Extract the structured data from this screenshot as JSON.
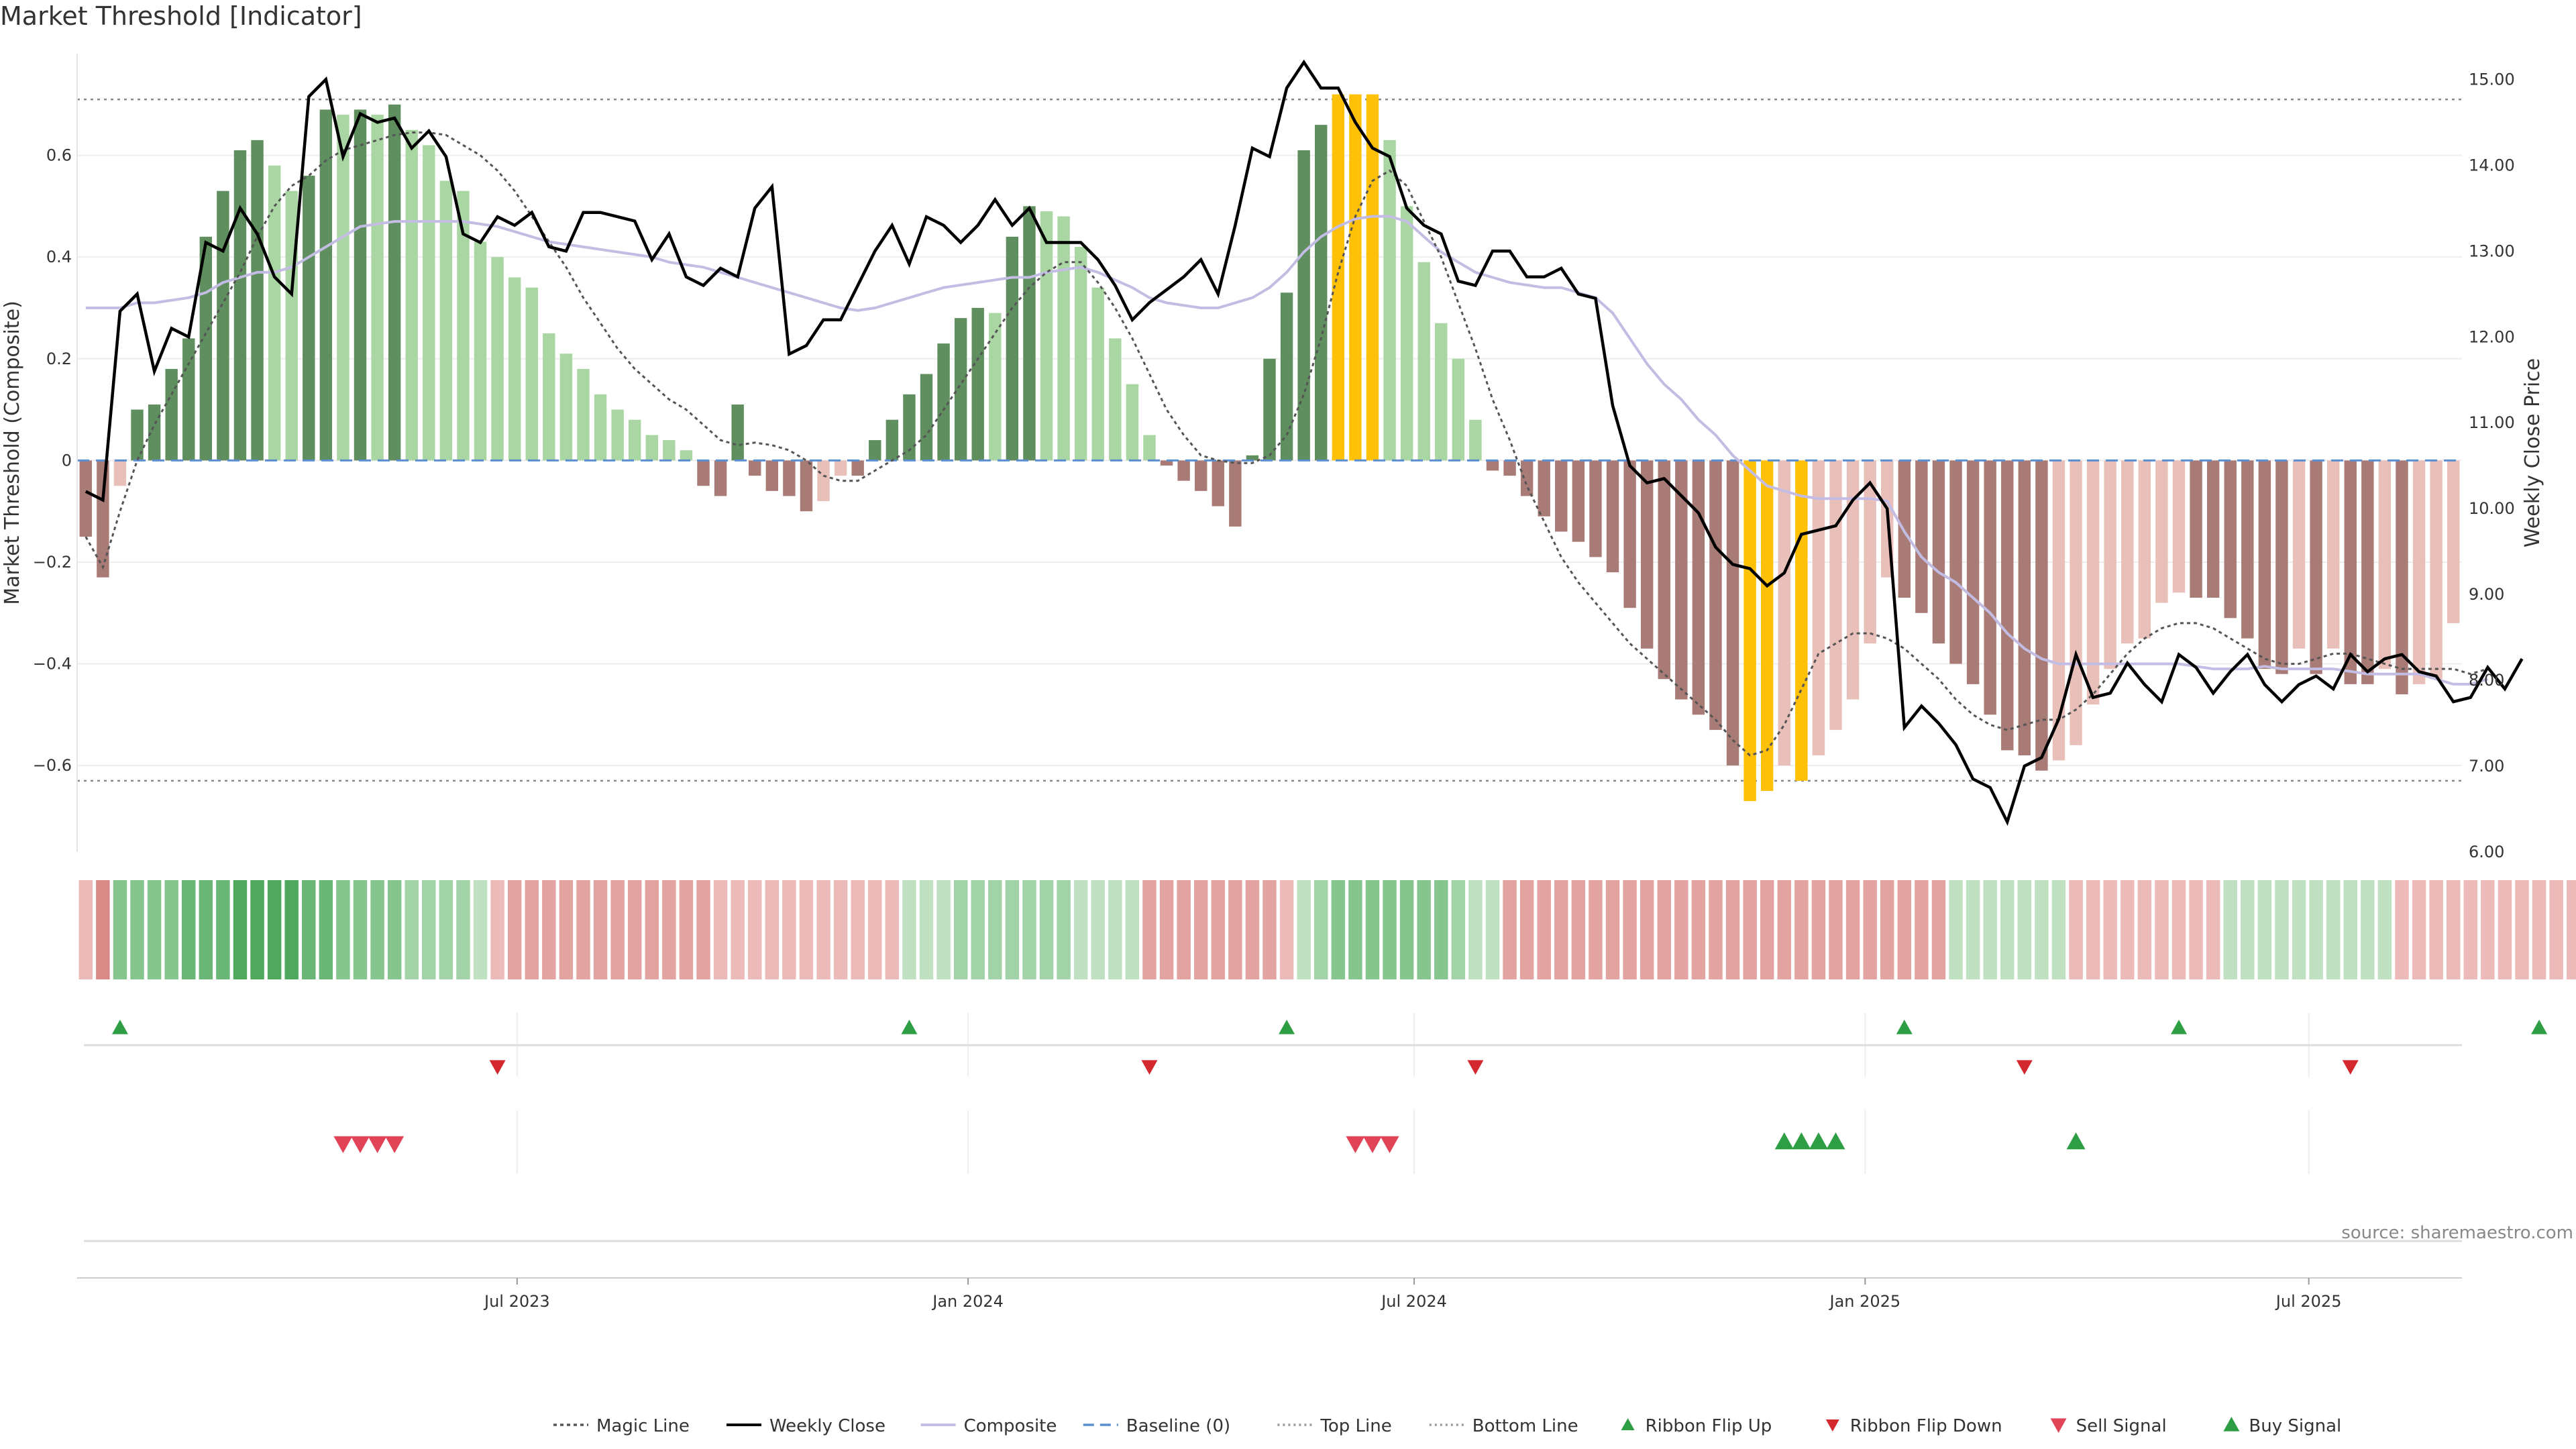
{
  "page": {
    "title": "Market Threshold [Indicator]"
  },
  "colors": {
    "bar_green_dark": "#5f8e5f",
    "bar_green_light": "#a9d6a2",
    "bar_red_dark": "#a87b76",
    "bar_red_light": "#e9bfba",
    "bar_extreme": "#ffc107",
    "weekly_close": "#000000",
    "composite": "#c3bce3",
    "magic": "#555555",
    "baseline": "#5b8fd0",
    "threshold": "#888888",
    "ribbon_up": "#2e9e44",
    "ribbon_down": "#d3282d",
    "sell": "#e04456",
    "buy": "#2e9e44"
  },
  "chart_data": {
    "type": "bar",
    "title": "Market Threshold [Indicator]",
    "ylabel": "Market Threshold (Composite)",
    "ylabel_right": "Weekly Close Price",
    "ylim": [
      -0.77,
      0.8
    ],
    "ylim_right": [
      6.0,
      15.3
    ],
    "yticks": [
      -0.6,
      -0.4,
      -0.2,
      0,
      0.2,
      0.4,
      0.6
    ],
    "ytick_labels": [
      "−0.6",
      "−0.4",
      "−0.2",
      "0",
      "0.2",
      "0.4",
      "0.6"
    ],
    "yticks_right": [
      6,
      7,
      8,
      9,
      10,
      11,
      12,
      13,
      14,
      15
    ],
    "ytick_labels_right": [
      "6.00",
      "7.00",
      "8.00",
      "9.00",
      "10.00",
      "11.00",
      "12.00",
      "13.00",
      "14.00",
      "15.00"
    ],
    "top_line": 0.71,
    "bottom_line": -0.63,
    "x_start": "2023-01-06",
    "x_step_days": 7,
    "x_ticks": [
      "2023-07-01",
      "2024-01-01",
      "2024-07-01",
      "2025-01-01",
      "2025-07-01"
    ],
    "x_tick_labels": [
      "Jul 2023",
      "Jan 2024",
      "Jul 2024",
      "Jan 2025",
      "Jul 2025"
    ],
    "grid": true,
    "legend_position": "bottom",
    "source": "source: sharemaestro.com",
    "series": [
      {
        "name": "Composite",
        "kind": "bar",
        "values": [
          -0.15,
          -0.23,
          -0.05,
          0.1,
          0.11,
          0.18,
          0.24,
          0.44,
          0.53,
          0.61,
          0.63,
          0.58,
          0.53,
          0.56,
          0.69,
          0.68,
          0.69,
          0.68,
          0.7,
          0.65,
          0.62,
          0.55,
          0.53,
          0.43,
          0.4,
          0.36,
          0.34,
          0.25,
          0.21,
          0.18,
          0.13,
          0.1,
          0.08,
          0.05,
          0.04,
          0.02,
          -0.05,
          -0.07,
          0.11,
          -0.03,
          -0.06,
          -0.07,
          -0.1,
          -0.08,
          -0.03,
          -0.03,
          0.04,
          0.08,
          0.13,
          0.17,
          0.23,
          0.28,
          0.3,
          0.29,
          0.44,
          0.5,
          0.49,
          0.48,
          0.42,
          0.34,
          0.24,
          0.15,
          0.05,
          -0.01,
          -0.04,
          -0.06,
          -0.09,
          -0.13,
          0.01,
          0.2,
          0.33,
          0.61,
          0.66,
          0.72,
          0.72,
          0.72,
          0.63,
          0.5,
          0.39,
          0.27,
          0.2,
          0.08,
          -0.02,
          -0.03,
          -0.07,
          -0.11,
          -0.14,
          -0.16,
          -0.19,
          -0.22,
          -0.29,
          -0.37,
          -0.43,
          -0.47,
          -0.5,
          -0.53,
          -0.6,
          -0.67,
          -0.65,
          -0.6,
          -0.63,
          -0.58,
          -0.53,
          -0.47,
          -0.36,
          -0.23,
          -0.27,
          -0.3,
          -0.36,
          -0.4,
          -0.44,
          -0.5,
          -0.57,
          -0.58,
          -0.61,
          -0.59,
          -0.56,
          -0.48,
          -0.41,
          -0.36,
          -0.35,
          -0.28,
          -0.26,
          -0.27,
          -0.27,
          -0.31,
          -0.35,
          -0.41,
          -0.42,
          -0.37,
          -0.42,
          -0.37,
          -0.44,
          -0.44,
          -0.41,
          -0.46,
          -0.44,
          -0.43,
          -0.32
        ]
      },
      {
        "name": "Weekly Close",
        "kind": "line",
        "axis": "right",
        "values": [
          10.2,
          10.1,
          12.3,
          12.5,
          11.6,
          12.1,
          12.0,
          13.1,
          13.0,
          13.5,
          13.2,
          12.7,
          12.5,
          14.8,
          15.0,
          14.1,
          14.6,
          14.5,
          14.55,
          14.2,
          14.4,
          14.1,
          13.2,
          13.1,
          13.4,
          13.3,
          13.45,
          13.05,
          13.0,
          13.45,
          13.45,
          13.4,
          13.35,
          12.9,
          13.2,
          12.7,
          12.6,
          12.8,
          12.7,
          13.5,
          13.75,
          11.8,
          11.9,
          12.2,
          12.2,
          12.6,
          13.0,
          13.3,
          12.85,
          13.4,
          13.3,
          13.1,
          13.3,
          13.6,
          13.3,
          13.5,
          13.1,
          13.1,
          13.1,
          12.9,
          12.6,
          12.2,
          12.4,
          12.55,
          12.7,
          12.9,
          12.5,
          13.3,
          14.2,
          14.1,
          14.9,
          15.2,
          14.9,
          14.9,
          14.5,
          14.2,
          14.1,
          13.5,
          13.3,
          13.2,
          12.65,
          12.6,
          13.0,
          13.0,
          12.7,
          12.7,
          12.8,
          12.5,
          12.45,
          11.2,
          10.5,
          10.3,
          10.35,
          10.15,
          9.95,
          9.55,
          9.35,
          9.3,
          9.1,
          9.25,
          9.7,
          9.75,
          9.8,
          10.1,
          10.3,
          10.0,
          7.45,
          7.7,
          7.5,
          7.25,
          6.85,
          6.75,
          6.35,
          7.0,
          7.1,
          7.55,
          8.3,
          7.8,
          7.85,
          8.2,
          7.95,
          7.75,
          8.3,
          8.15,
          7.85,
          8.1,
          8.3,
          7.95,
          7.75,
          7.95,
          8.05,
          7.9,
          8.3,
          8.1,
          8.25,
          8.3,
          8.1,
          8.05,
          7.75,
          7.8,
          8.15,
          7.9,
          8.25
        ]
      },
      {
        "name": "Composite",
        "kind": "smooth-line",
        "values": [
          0.3,
          0.3,
          0.3,
          0.31,
          0.31,
          0.315,
          0.32,
          0.33,
          0.35,
          0.36,
          0.37,
          0.37,
          0.38,
          0.4,
          0.42,
          0.44,
          0.46,
          0.465,
          0.47,
          0.47,
          0.47,
          0.47,
          0.47,
          0.465,
          0.46,
          0.45,
          0.44,
          0.43,
          0.425,
          0.42,
          0.415,
          0.41,
          0.405,
          0.4,
          0.39,
          0.385,
          0.38,
          0.37,
          0.36,
          0.35,
          0.34,
          0.33,
          0.32,
          0.31,
          0.3,
          0.295,
          0.3,
          0.31,
          0.32,
          0.33,
          0.34,
          0.345,
          0.35,
          0.355,
          0.36,
          0.36,
          0.37,
          0.375,
          0.38,
          0.37,
          0.355,
          0.34,
          0.32,
          0.31,
          0.305,
          0.3,
          0.3,
          0.31,
          0.32,
          0.34,
          0.37,
          0.41,
          0.44,
          0.46,
          0.475,
          0.48,
          0.48,
          0.47,
          0.44,
          0.41,
          0.39,
          0.37,
          0.36,
          0.35,
          0.345,
          0.34,
          0.34,
          0.33,
          0.32,
          0.29,
          0.24,
          0.19,
          0.15,
          0.12,
          0.08,
          0.05,
          0.01,
          -0.02,
          -0.05,
          -0.06,
          -0.07,
          -0.075,
          -0.075,
          -0.075,
          -0.075,
          -0.08,
          -0.14,
          -0.19,
          -0.22,
          -0.24,
          -0.27,
          -0.3,
          -0.34,
          -0.37,
          -0.39,
          -0.4,
          -0.4,
          -0.4,
          -0.4,
          -0.4,
          -0.4,
          -0.4,
          -0.4,
          -0.405,
          -0.41,
          -0.41,
          -0.41,
          -0.405,
          -0.41,
          -0.41,
          -0.41,
          -0.41,
          -0.415,
          -0.42,
          -0.42,
          -0.42,
          -0.42,
          -0.43,
          -0.44,
          -0.44,
          -0.43
        ]
      },
      {
        "name": "Magic Line",
        "kind": "dashed-line",
        "values": [
          -0.15,
          -0.21,
          -0.1,
          0.0,
          0.07,
          0.13,
          0.19,
          0.25,
          0.31,
          0.37,
          0.44,
          0.5,
          0.54,
          0.56,
          0.59,
          0.61,
          0.62,
          0.63,
          0.64,
          0.645,
          0.645,
          0.64,
          0.62,
          0.6,
          0.57,
          0.53,
          0.48,
          0.43,
          0.38,
          0.32,
          0.27,
          0.22,
          0.18,
          0.15,
          0.12,
          0.1,
          0.07,
          0.04,
          0.03,
          0.035,
          0.03,
          0.02,
          0.0,
          -0.03,
          -0.04,
          -0.04,
          -0.02,
          0.0,
          0.02,
          0.05,
          0.1,
          0.15,
          0.2,
          0.25,
          0.3,
          0.34,
          0.37,
          0.39,
          0.39,
          0.35,
          0.3,
          0.24,
          0.17,
          0.1,
          0.05,
          0.01,
          0.0,
          -0.005,
          -0.005,
          0.01,
          0.05,
          0.13,
          0.24,
          0.37,
          0.48,
          0.55,
          0.57,
          0.54,
          0.47,
          0.4,
          0.31,
          0.22,
          0.12,
          0.04,
          -0.05,
          -0.12,
          -0.19,
          -0.24,
          -0.28,
          -0.32,
          -0.36,
          -0.39,
          -0.42,
          -0.45,
          -0.48,
          -0.51,
          -0.55,
          -0.58,
          -0.57,
          -0.52,
          -0.45,
          -0.38,
          -0.36,
          -0.34,
          -0.34,
          -0.35,
          -0.37,
          -0.4,
          -0.43,
          -0.47,
          -0.5,
          -0.52,
          -0.53,
          -0.52,
          -0.51,
          -0.51,
          -0.49,
          -0.46,
          -0.42,
          -0.38,
          -0.35,
          -0.33,
          -0.32,
          -0.32,
          -0.33,
          -0.35,
          -0.37,
          -0.39,
          -0.4,
          -0.4,
          -0.39,
          -0.38,
          -0.38,
          -0.39,
          -0.4,
          -0.41,
          -0.41,
          -0.41,
          -0.41,
          -0.42,
          -0.41
        ]
      }
    ],
    "ribbon_levels": [
      -1,
      -3,
      3,
      3,
      3,
      3,
      4,
      4,
      4,
      5,
      5,
      5,
      5,
      4,
      4,
      3,
      3,
      3,
      3,
      2,
      2,
      2,
      2,
      1,
      -1,
      -2,
      -2,
      -2,
      -2,
      -2,
      -2,
      -2,
      -2,
      -2,
      -2,
      -2,
      -2,
      -1,
      -1,
      -1,
      -1,
      -1,
      -1,
      -1,
      -1,
      -1,
      -1,
      -1,
      1,
      1,
      1,
      2,
      2,
      2,
      2,
      2,
      2,
      2,
      1,
      1,
      1,
      1,
      -2,
      -2,
      -2,
      -2,
      -2,
      -2,
      -2,
      -2,
      -1,
      1,
      2,
      3,
      3,
      3,
      3,
      3,
      3,
      3,
      2,
      1,
      1,
      -2,
      -2,
      -2,
      -2,
      -2,
      -2,
      -2,
      -2,
      -2,
      -2,
      -2,
      -2,
      -2,
      -2,
      -2,
      -2,
      -2,
      -2,
      -2,
      -2,
      -2,
      -2,
      -2,
      -2,
      -2,
      -2,
      1,
      1,
      1,
      1,
      1,
      1,
      1,
      -1,
      -1,
      -1,
      -1,
      -1,
      -1,
      -1,
      -1,
      -1,
      1,
      1,
      1,
      1,
      1,
      1,
      1,
      1,
      1,
      1,
      -1,
      -1,
      -1,
      -1,
      -1,
      -1,
      -1,
      -1,
      -1,
      -1,
      -1,
      -1,
      1
    ],
    "ribbon_flip_up_weeks": [
      2,
      48,
      70,
      106,
      122,
      143
    ],
    "ribbon_flip_down_weeks": [
      24,
      62,
      81,
      113,
      132
    ],
    "sell_signal_weeks": [
      15,
      16,
      17,
      18,
      74,
      75,
      76
    ],
    "buy_signal_weeks": [
      99,
      100,
      101,
      102,
      116
    ]
  },
  "legend": [
    {
      "label": "Magic Line",
      "icon": "dotted-line-icon"
    },
    {
      "label": "Weekly Close",
      "icon": "solid-line-icon"
    },
    {
      "label": "Composite",
      "icon": "purple-line-icon"
    },
    {
      "label": "Baseline (0)",
      "icon": "dashed-line-icon"
    },
    {
      "label": "Top Line",
      "icon": "dotted-line-icon"
    },
    {
      "label": "Bottom Line",
      "icon": "dotted-line-icon"
    },
    {
      "label": "Ribbon Flip Up",
      "icon": "triangle-up-icon"
    },
    {
      "label": "Ribbon Flip Down",
      "icon": "triangle-down-icon"
    },
    {
      "label": "Sell Signal",
      "icon": "triangle-down-icon"
    },
    {
      "label": "Buy Signal",
      "icon": "triangle-up-icon"
    }
  ]
}
